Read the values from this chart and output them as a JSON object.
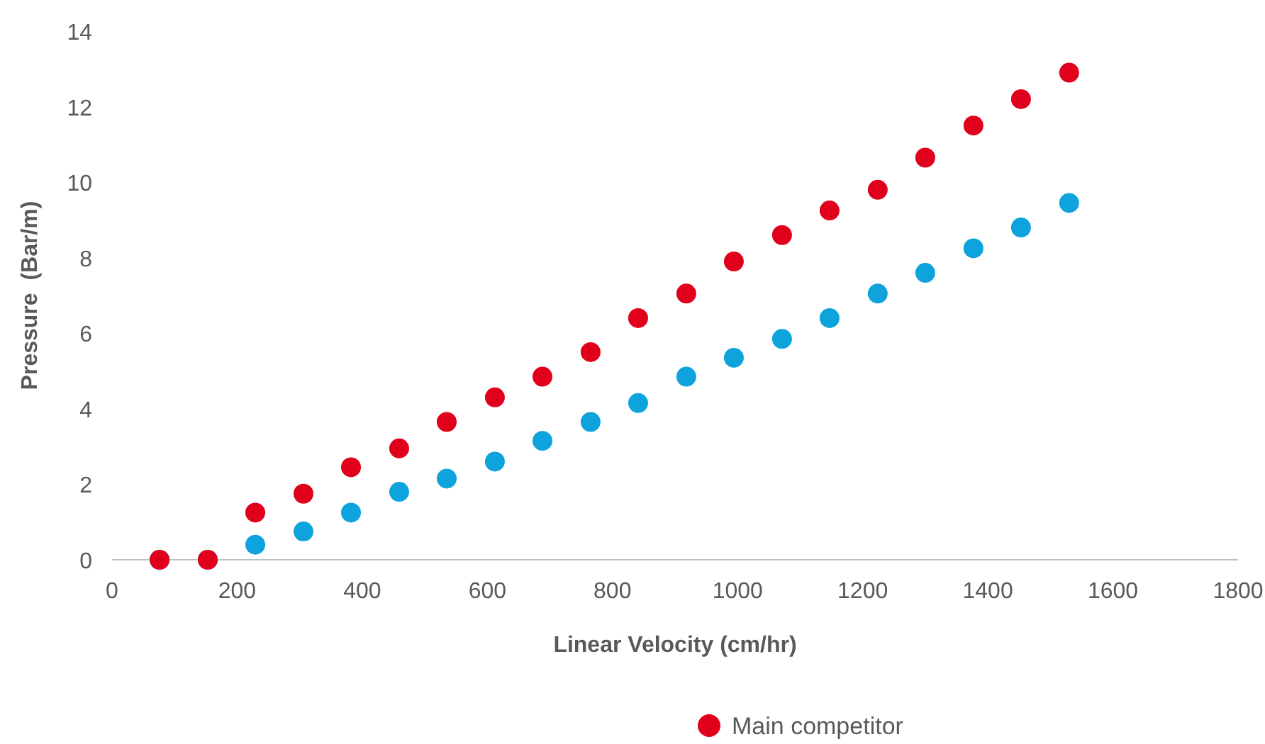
{
  "chart_data": {
    "type": "scatter",
    "xlabel": "Linear Velocity (cm/hr)",
    "ylabel": "Pressure  (Bar/m)",
    "x": [
      76,
      153,
      229,
      306,
      382,
      459,
      535,
      612,
      688,
      765,
      841,
      918,
      994,
      1071,
      1147,
      1224,
      1300,
      1377,
      1453,
      1530
    ],
    "series": [
      {
        "color": "#0fa3de",
        "values": [
          0,
          0,
          0.4,
          0.75,
          1.25,
          1.8,
          2.15,
          2.6,
          3.15,
          3.65,
          4.15,
          4.85,
          5.35,
          5.85,
          6.4,
          7.05,
          7.6,
          8.25,
          8.8,
          9.45
        ]
      },
      {
        "name": "Main competitor",
        "color": "#e1001c",
        "values": [
          0,
          0,
          1.25,
          1.75,
          2.45,
          2.95,
          3.65,
          4.3,
          4.85,
          5.5,
          6.4,
          7.05,
          7.9,
          8.6,
          9.25,
          9.8,
          10.65,
          11.5,
          12.2,
          12.9
        ]
      }
    ],
    "xlim": [
      0,
      1800
    ],
    "xticks": [
      0,
      200,
      400,
      600,
      800,
      1000,
      1200,
      1400,
      1600,
      1800
    ],
    "ylim": [
      0,
      14
    ],
    "yticks": [
      0,
      2,
      4,
      6,
      8,
      10,
      12,
      14
    ],
    "marker": "circle",
    "legend": "bottom"
  }
}
